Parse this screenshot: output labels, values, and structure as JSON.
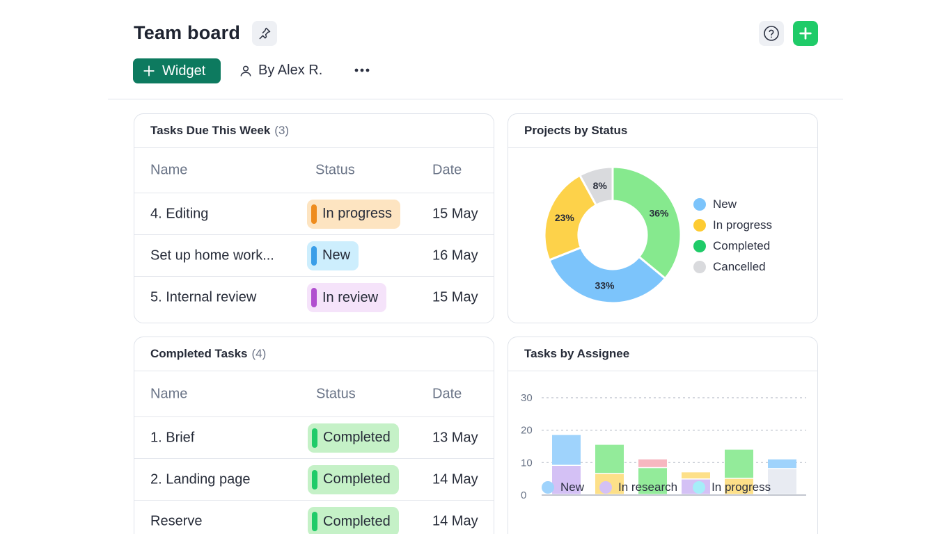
{
  "header": {
    "title": "Team board"
  },
  "toolbar": {
    "widget_label": "Widget",
    "owner_label": "By Alex R."
  },
  "colors": {
    "new": "#7cc4fb",
    "in_progress": "#fdd24a",
    "completed": "#86e98e",
    "cancelled": "#d9dadd",
    "in_research": "#d4c1f5",
    "in_progress_light": "#a5eef8",
    "pink": "#f7b7c0",
    "accent": "#0d7a5f",
    "add": "#1fcb68"
  },
  "tasks_due": {
    "title": "Tasks Due This Week",
    "count": "(3)",
    "headers": {
      "name": "Name",
      "status": "Status",
      "date": "Date"
    },
    "rows": [
      {
        "name": "4. Editing",
        "status": "In progress",
        "date": "15 May"
      },
      {
        "name": "Set up home work...",
        "status": "New",
        "date": "16 May"
      },
      {
        "name": "5. Internal review",
        "status": "In review",
        "date": "15 May"
      }
    ]
  },
  "completed_tasks": {
    "title": "Completed Tasks",
    "count": "(4)",
    "headers": {
      "name": "Name",
      "status": "Status",
      "date": "Date"
    },
    "rows": [
      {
        "name": "1. Brief",
        "status": "Completed",
        "date": "13 May"
      },
      {
        "name": "2. Landing page",
        "status": "Completed",
        "date": "14 May"
      },
      {
        "name": "Reserve",
        "status": "Completed",
        "date": "14 May"
      }
    ]
  },
  "projects_by_status": {
    "title": "Projects by Status",
    "legend": [
      "New",
      "In progress",
      "Completed",
      "Cancelled"
    ]
  },
  "tasks_by_assignee": {
    "title": "Tasks by Assignee",
    "legend": [
      "New",
      "In research",
      "In progress"
    ]
  },
  "chart_data": [
    {
      "type": "pie",
      "title": "Projects by Status",
      "labels": [
        "Completed",
        "New",
        "In progress",
        "Cancelled"
      ],
      "values": [
        36,
        33,
        23,
        8
      ],
      "value_labels": [
        "36%",
        "33%",
        "23%",
        "8%"
      ],
      "colors": [
        "#86e98e",
        "#7cc4fb",
        "#fdd24a",
        "#d9dadd"
      ]
    },
    {
      "type": "bar",
      "title": "Tasks by Assignee",
      "stacked": true,
      "ylim": [
        0,
        30
      ],
      "yticks": [
        0,
        10,
        20,
        30
      ],
      "categories": [
        "",
        "",
        "",
        "",
        "",
        ""
      ],
      "bars": [
        [
          {
            "value": 9,
            "color": "#d4c1f5"
          },
          {
            "value": 9.5,
            "color": "#9fd3fc"
          }
        ],
        [
          {
            "value": 6.5,
            "color": "#fde089"
          },
          {
            "value": 9,
            "color": "#93eb9a"
          }
        ],
        [
          {
            "value": 8.3,
            "color": "#93eb9a"
          },
          {
            "value": 2.7,
            "color": "#f7b7c0"
          }
        ],
        [
          {
            "value": 4.8,
            "color": "#d4c1f5"
          },
          {
            "value": 2.2,
            "color": "#fde089"
          }
        ],
        [
          {
            "value": 5,
            "color": "#fde089"
          },
          {
            "value": 9,
            "color": "#93eb9a"
          }
        ],
        [
          {
            "value": 8,
            "color": "#e8ebf2"
          },
          {
            "value": 3,
            "color": "#9fd3fc"
          }
        ]
      ],
      "legend": [
        "New",
        "In research",
        "In progress"
      ],
      "grid": true
    }
  ]
}
